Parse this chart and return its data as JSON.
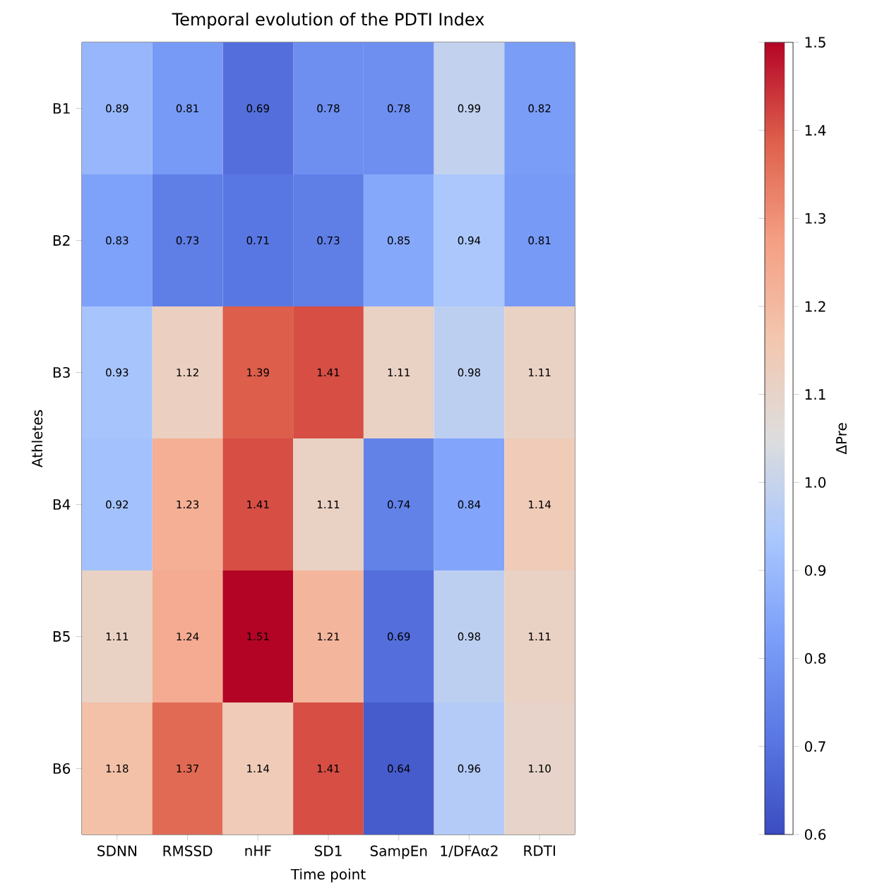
{
  "chart_data": {
    "type": "heatmap",
    "title": "Temporal evolution of the PDTI Index",
    "xlabel": "Time point",
    "ylabel": "Athletes",
    "clabel": "ΔPre",
    "categories": [
      "SDNN",
      "RMSSD",
      "nHF",
      "SD1",
      "SampEn",
      "1/DFAα2",
      "RDTI"
    ],
    "y_categories": [
      "B1",
      "B2",
      "B3",
      "B4",
      "B5",
      "B6"
    ],
    "cells": [
      [
        0.89,
        0.81,
        0.69,
        0.78,
        0.78,
        0.99,
        0.82
      ],
      [
        0.83,
        0.73,
        0.71,
        0.73,
        0.85,
        0.94,
        0.81
      ],
      [
        0.93,
        1.12,
        1.39,
        1.41,
        1.11,
        0.98,
        1.11
      ],
      [
        0.92,
        1.23,
        1.41,
        1.11,
        0.74,
        0.84,
        1.14
      ],
      [
        1.11,
        1.24,
        1.51,
        1.21,
        0.69,
        0.98,
        1.11
      ],
      [
        1.18,
        1.37,
        1.14,
        1.41,
        0.64,
        0.96,
        1.1
      ]
    ],
    "cell_labels": [
      [
        "0.89",
        "0.81",
        "0.69",
        "0.78",
        "0.78",
        "0.99",
        "0.82"
      ],
      [
        "0.83",
        "0.73",
        "0.71",
        "0.73",
        "0.85",
        "0.94",
        "0.81"
      ],
      [
        "0.93",
        "1.12",
        "1.39",
        "1.41",
        "1.11",
        "0.98",
        "1.11"
      ],
      [
        "0.92",
        "1.23",
        "1.41",
        "1.11",
        "0.74",
        "0.84",
        "1.14"
      ],
      [
        "1.11",
        "1.24",
        "1.51",
        "1.21",
        "0.69",
        "0.98",
        "1.11"
      ],
      [
        "1.18",
        "1.37",
        "1.14",
        "1.41",
        "0.64",
        "0.96",
        "1.10"
      ]
    ],
    "clim": [
      0.6,
      1.5
    ],
    "cticks": [
      0.6,
      0.7,
      0.8,
      0.9,
      {
        "value": 1.0,
        "label": "1.0"
      },
      1.1,
      1.2,
      1.3,
      1.4,
      1.5
    ]
  }
}
